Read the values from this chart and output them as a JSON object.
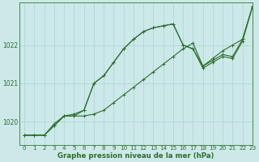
{
  "title": "Graphe pression niveau de la mer (hPa)",
  "background_color": "#cce8e8",
  "line_color": "#2d6e2d",
  "xlim": [
    -0.5,
    23
  ],
  "ylim": [
    1019.4,
    1023.1
  ],
  "yticks": [
    1020,
    1021,
    1022
  ],
  "xticks": [
    0,
    1,
    2,
    3,
    4,
    5,
    6,
    7,
    8,
    9,
    10,
    11,
    12,
    13,
    14,
    15,
    16,
    17,
    18,
    19,
    20,
    21,
    22,
    23
  ],
  "line1_x": [
    0,
    1,
    2,
    3,
    4,
    5,
    6,
    7,
    8,
    9,
    10,
    11,
    12,
    13,
    14,
    15,
    16,
    17,
    18,
    19,
    20,
    21,
    22,
    23
  ],
  "line1_y": [
    1019.65,
    1019.65,
    1019.65,
    1019.9,
    1020.15,
    1020.15,
    1020.15,
    1020.2,
    1020.3,
    1020.5,
    1020.7,
    1020.9,
    1021.1,
    1021.3,
    1021.5,
    1021.7,
    1021.9,
    1022.05,
    1021.45,
    1021.65,
    1021.85,
    1022.0,
    1022.15,
    1023.0
  ],
  "line2_x": [
    0,
    1,
    2,
    3,
    4,
    5,
    6,
    7,
    8,
    9,
    10,
    11,
    12,
    13,
    14,
    15,
    16,
    17,
    18,
    19,
    20,
    21,
    22,
    23
  ],
  "line2_y": [
    1019.65,
    1019.65,
    1019.65,
    1019.9,
    1020.15,
    1020.15,
    1020.3,
    1021.0,
    1021.2,
    1021.55,
    1021.9,
    1022.15,
    1022.35,
    1022.45,
    1022.5,
    1022.55,
    1022.0,
    1021.9,
    1021.4,
    1021.55,
    1021.7,
    1021.65,
    1022.1,
    1023.0
  ],
  "line3_x": [
    0,
    1,
    2,
    3,
    4,
    5,
    6,
    7,
    8,
    9,
    10,
    11,
    12,
    13,
    14,
    15,
    16,
    17,
    18,
    19,
    20,
    21,
    22,
    23
  ],
  "line3_y": [
    1019.65,
    1019.65,
    1019.65,
    1019.95,
    1020.15,
    1020.2,
    1020.3,
    1021.0,
    1021.2,
    1021.55,
    1021.9,
    1022.15,
    1022.35,
    1022.45,
    1022.5,
    1022.55,
    1022.0,
    1021.9,
    1021.45,
    1021.6,
    1021.75,
    1021.7,
    1022.15,
    1023.0
  ],
  "marker": "+",
  "markersize": 3,
  "linewidth": 0.8,
  "grid_color": "#aad4d4",
  "spine_color": "#4a8a4a",
  "tick_fontsize": 5.2,
  "xlabel_fontsize": 6.2
}
